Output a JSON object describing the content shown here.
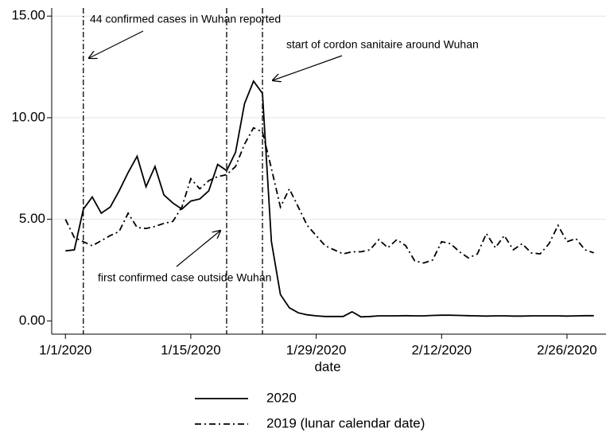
{
  "chart_data": {
    "type": "line",
    "x_label": "date",
    "x": [
      "1/1/2020",
      "1/2/2020",
      "1/3/2020",
      "1/4/2020",
      "1/5/2020",
      "1/6/2020",
      "1/7/2020",
      "1/8/2020",
      "1/9/2020",
      "1/10/2020",
      "1/11/2020",
      "1/12/2020",
      "1/13/2020",
      "1/14/2020",
      "1/15/2020",
      "1/16/2020",
      "1/17/2020",
      "1/18/2020",
      "1/19/2020",
      "1/20/2020",
      "1/21/2020",
      "1/22/2020",
      "1/23/2020",
      "1/24/2020",
      "1/25/2020",
      "1/26/2020",
      "1/27/2020",
      "1/28/2020",
      "1/29/2020",
      "1/30/2020",
      "1/31/2020",
      "2/1/2020",
      "2/2/2020",
      "2/3/2020",
      "2/4/2020",
      "2/5/2020",
      "2/6/2020",
      "2/7/2020",
      "2/8/2020",
      "2/9/2020",
      "2/10/2020",
      "2/11/2020",
      "2/12/2020",
      "2/13/2020",
      "2/14/2020",
      "2/15/2020",
      "2/16/2020",
      "2/17/2020",
      "2/18/2020",
      "2/19/2020",
      "2/20/2020",
      "2/21/2020",
      "2/22/2020",
      "2/23/2020",
      "2/24/2020",
      "2/25/2020",
      "2/26/2020",
      "2/27/2020",
      "2/28/2020",
      "2/29/2020"
    ],
    "series": [
      {
        "name": "2020",
        "color": "#000000",
        "line_style": "solid",
        "values": [
          3.45,
          3.5,
          5.5,
          6.1,
          5.3,
          5.6,
          6.4,
          7.3,
          8.1,
          6.6,
          7.6,
          6.2,
          5.8,
          5.5,
          5.9,
          6.0,
          6.4,
          7.7,
          7.4,
          8.3,
          10.7,
          11.8,
          11.2,
          3.9,
          1.3,
          0.65,
          0.4,
          0.3,
          0.25,
          0.22,
          0.22,
          0.22,
          0.45,
          0.2,
          0.22,
          0.25,
          0.25,
          0.25,
          0.26,
          0.25,
          0.25,
          0.27,
          0.28,
          0.28,
          0.27,
          0.26,
          0.25,
          0.24,
          0.25,
          0.25,
          0.24,
          0.24,
          0.25,
          0.25,
          0.25,
          0.25,
          0.24,
          0.25,
          0.26,
          0.26
        ]
      },
      {
        "name": "2019 (lunar calendar date)",
        "color": "#000000",
        "line_style": "dashdot",
        "values": [
          5.0,
          4.1,
          3.9,
          3.7,
          3.95,
          4.2,
          4.4,
          5.3,
          4.6,
          4.55,
          4.65,
          4.8,
          4.9,
          5.6,
          7.0,
          6.5,
          6.9,
          7.1,
          7.2,
          7.6,
          8.7,
          9.5,
          9.3,
          7.5,
          5.6,
          6.5,
          5.6,
          4.7,
          4.2,
          3.7,
          3.5,
          3.3,
          3.4,
          3.4,
          3.5,
          4.0,
          3.6,
          4.0,
          3.7,
          2.95,
          2.85,
          3.0,
          3.9,
          3.8,
          3.4,
          3.1,
          3.3,
          4.3,
          3.6,
          4.2,
          3.5,
          3.8,
          3.35,
          3.3,
          3.8,
          4.7,
          3.9,
          4.05,
          3.5,
          3.35
        ]
      }
    ],
    "xlim": [
      "12/31/2019",
      "3/1/2020"
    ],
    "xticks": [
      "1/1/2020",
      "1/15/2020",
      "1/29/2020",
      "2/12/2020",
      "2/26/2020"
    ],
    "ylim": [
      -0.65,
      15.4
    ],
    "yticks": [
      {
        "value": 0,
        "label": "0.00"
      },
      {
        "value": 5,
        "label": "5.00"
      },
      {
        "value": 10,
        "label": "10.00"
      },
      {
        "value": 15,
        "label": "15.00"
      }
    ],
    "grid": true,
    "vlines": [
      "1/3/2020",
      "1/19/2020",
      "1/23/2020"
    ],
    "annotations": [
      "44 confirmed cases in Wuhan reported",
      "first confirmed case outside Wuhan",
      "start of cordon sanitaire around Wuhan"
    ],
    "legend": "bottom"
  }
}
